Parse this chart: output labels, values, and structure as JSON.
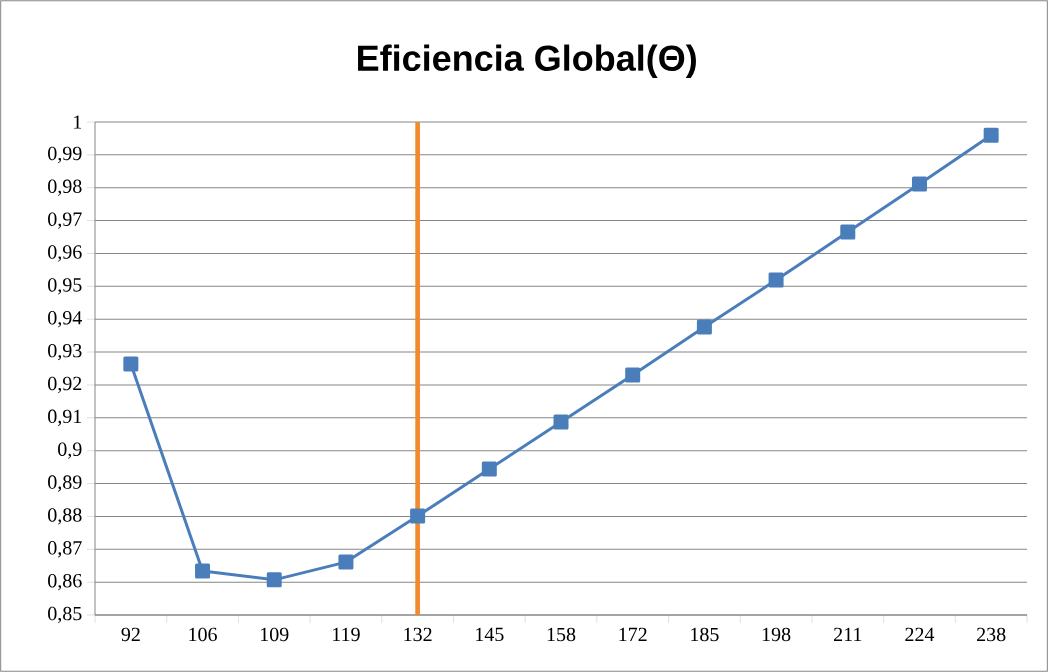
{
  "chart_data": {
    "type": "line",
    "title": "Eficiencia Global(Θ)",
    "categories": [
      "92",
      "106",
      "109",
      "119",
      "132",
      "145",
      "158",
      "172",
      "185",
      "198",
      "211",
      "224",
      "238"
    ],
    "series": [
      {
        "color": "#4a7ebb",
        "values": [
          0.9264,
          0.8634,
          0.8607,
          0.8661,
          0.8801,
          0.8944,
          0.9087,
          0.923,
          0.9376,
          0.9519,
          0.9665,
          0.9811,
          0.996
        ]
      }
    ],
    "ylim": [
      0.85,
      1
    ],
    "yticks": [
      {
        "value": 0.85,
        "label": "0,85"
      },
      {
        "value": 0.86,
        "label": "0,86"
      },
      {
        "value": 0.87,
        "label": "0,87"
      },
      {
        "value": 0.88,
        "label": "0,88"
      },
      {
        "value": 0.89,
        "label": "0,89"
      },
      {
        "value": 0.9,
        "label": "0,9"
      },
      {
        "value": 0.91,
        "label": "0,91"
      },
      {
        "value": 0.92,
        "label": "0,92"
      },
      {
        "value": 0.93,
        "label": "0,93"
      },
      {
        "value": 0.94,
        "label": "0,94"
      },
      {
        "value": 0.95,
        "label": "0,95"
      },
      {
        "value": 0.96,
        "label": "0,96"
      },
      {
        "value": 0.97,
        "label": "0,97"
      },
      {
        "value": 0.98,
        "label": "0,98"
      },
      {
        "value": 0.99,
        "label": "0,99"
      },
      1
    ],
    "ref_lines": [
      {
        "axis": "x",
        "value": "132",
        "color": "#f08a2c"
      }
    ],
    "grid": "y",
    "marker": "square",
    "line_style": "solid"
  }
}
